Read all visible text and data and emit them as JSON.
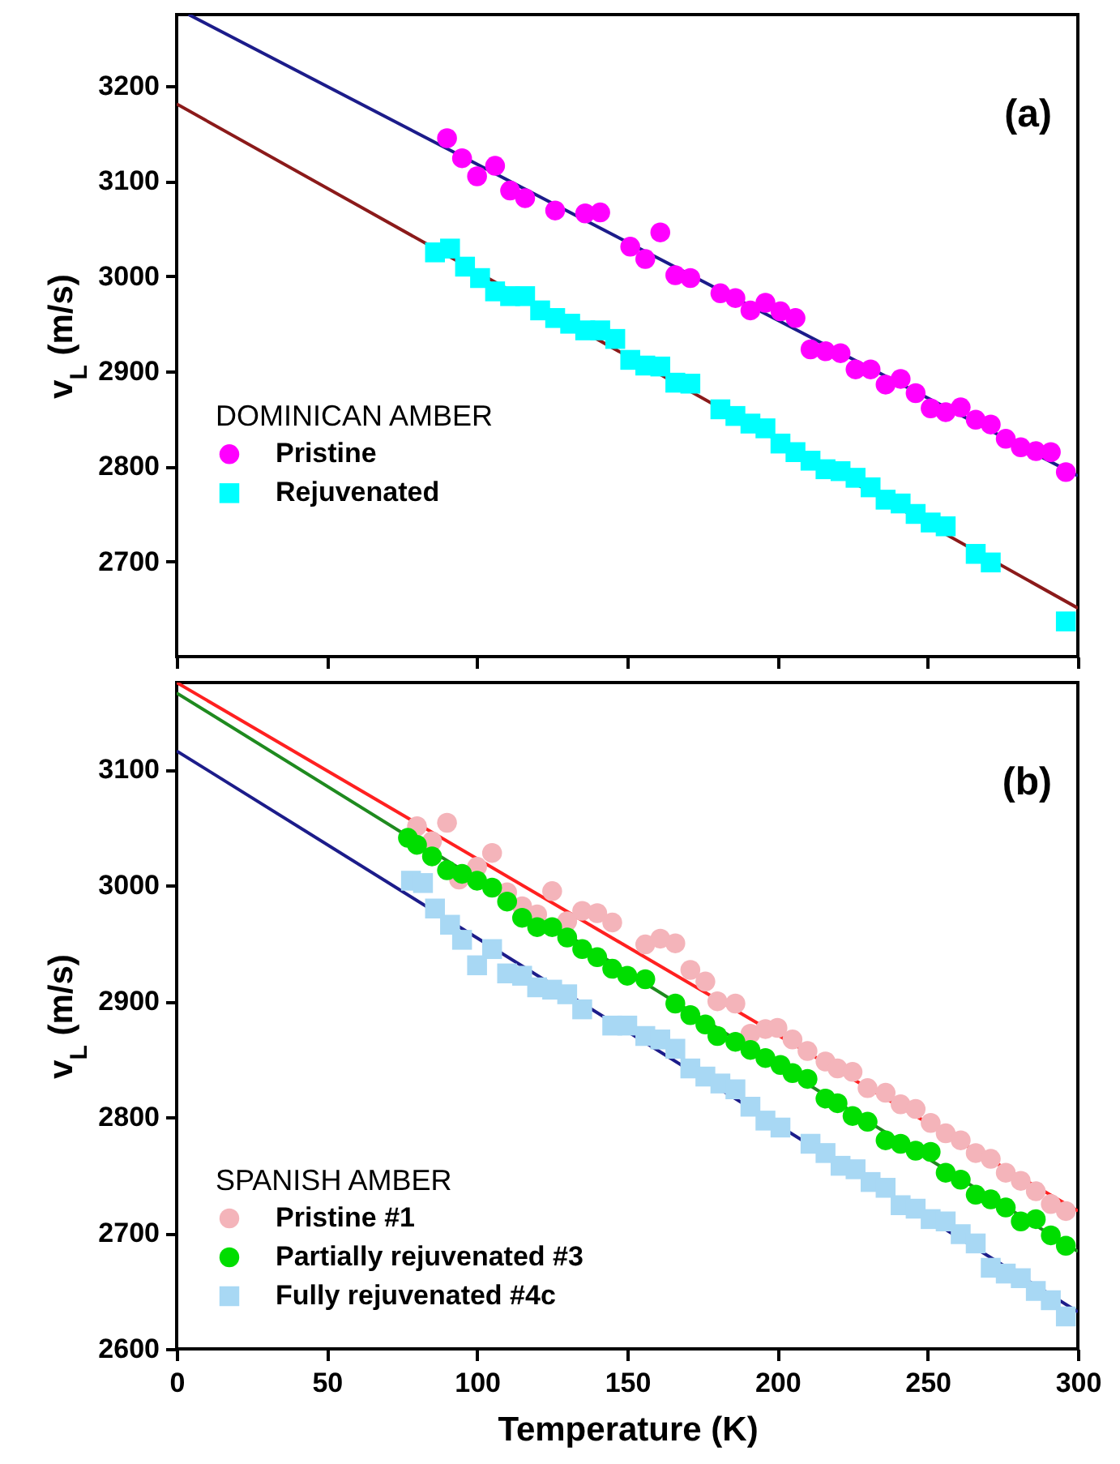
{
  "chart_data": [
    {
      "type": "scatter",
      "ylabel": "v$_{L}$ (m/s)",
      "xlim": [
        0,
        300
      ],
      "xticks": [
        0,
        50,
        100,
        150,
        200,
        250,
        300
      ],
      "ylim": [
        2600,
        3275
      ],
      "yticks": [
        2700,
        2800,
        2900,
        3000,
        3100,
        3200
      ],
      "tick_labels": "y",
      "grid": false,
      "legend": "bottom left",
      "legend_title": "DOMINICAN AMBER",
      "annotations": [
        "(a)"
      ],
      "series": [
        {
          "type": "line",
          "color": "#1c1c8a",
          "x": [
            4,
            300
          ],
          "values": [
            3275,
            2790
          ]
        },
        {
          "type": "line",
          "color": "#8b1a1a",
          "x": [
            0,
            300
          ],
          "values": [
            3181,
            2651
          ]
        },
        {
          "name": "Pristine",
          "color": "#ff00ff",
          "marker": "circle",
          "x": [
            90,
            95,
            100,
            106,
            111,
            116,
            126,
            136,
            141,
            151,
            156,
            161,
            166,
            171,
            181,
            186,
            191,
            196,
            201,
            206,
            211,
            216,
            221,
            226,
            231,
            236,
            241,
            246,
            251,
            256,
            261,
            266,
            271,
            276,
            281,
            286,
            291,
            296
          ],
          "values": [
            3145,
            3124,
            3105,
            3116,
            3090,
            3082,
            3069,
            3066,
            3067,
            3031,
            3018,
            3046,
            3001,
            2998,
            2982,
            2977,
            2964,
            2972,
            2963,
            2956,
            2923,
            2921,
            2919,
            2902,
            2902,
            2886,
            2892,
            2877,
            2861,
            2857,
            2862,
            2849,
            2844,
            2829,
            2820,
            2816,
            2815,
            2794
          ]
        },
        {
          "name": "Rejuvenated",
          "color": "#00ffff",
          "marker": "square",
          "x": [
            86,
            91,
            96,
            101,
            106,
            111,
            116,
            121,
            126,
            131,
            136,
            141,
            146,
            151,
            156,
            161,
            166,
            171,
            181,
            186,
            191,
            196,
            201,
            206,
            211,
            216,
            221,
            226,
            231,
            236,
            241,
            246,
            251,
            256,
            266,
            271,
            296
          ],
          "values": [
            3025,
            3029,
            3010,
            2998,
            2984,
            2979,
            2979,
            2964,
            2956,
            2950,
            2943,
            2943,
            2934,
            2912,
            2906,
            2905,
            2888,
            2887,
            2860,
            2853,
            2845,
            2840,
            2824,
            2815,
            2806,
            2797,
            2795,
            2788,
            2778,
            2765,
            2761,
            2750,
            2741,
            2737,
            2708,
            2699,
            2637
          ]
        }
      ]
    },
    {
      "type": "scatter",
      "xlabel": "Temperature (K)",
      "ylabel": "v$_{L}$ (m/s)",
      "xlim": [
        0,
        300
      ],
      "xticks": [
        0,
        50,
        100,
        150,
        200,
        250,
        300
      ],
      "ylim": [
        2600,
        3175
      ],
      "yticks": [
        2600,
        2700,
        2800,
        2900,
        3000,
        3100
      ],
      "grid": false,
      "legend": "bottom left",
      "legend_title": "SPANISH AMBER",
      "annotations": [
        "(b)"
      ],
      "series": [
        {
          "type": "line",
          "color": "#ff2020",
          "x": [
            0,
            300
          ],
          "values": [
            3175,
            2719
          ]
        },
        {
          "type": "line",
          "color": "#1f8a1f",
          "x": [
            0,
            300
          ],
          "values": [
            3166,
            2684
          ]
        },
        {
          "type": "line",
          "color": "#1c1c8a",
          "x": [
            0,
            300
          ],
          "values": [
            3116,
            2632
          ]
        },
        {
          "name": "Pristine #1",
          "color": "#f4b4ba",
          "marker": "circle",
          "x": [
            80,
            85,
            90,
            94,
            100,
            105,
            110,
            115,
            120,
            125,
            130,
            135,
            140,
            145,
            156,
            161,
            166,
            171,
            176,
            180,
            186,
            191,
            196,
            200,
            205,
            210,
            216,
            220,
            225,
            230,
            236,
            241,
            246,
            251,
            256,
            261,
            266,
            271,
            276,
            281,
            286,
            291,
            296
          ],
          "values": [
            3051,
            3038,
            3054,
            3005,
            3016,
            3028,
            2994,
            2982,
            2975,
            2995,
            2969,
            2978,
            2976,
            2968,
            2949,
            2954,
            2950,
            2927,
            2917,
            2900,
            2898,
            2872,
            2876,
            2877,
            2867,
            2857,
            2848,
            2842,
            2839,
            2825,
            2821,
            2811,
            2807,
            2795,
            2786,
            2780,
            2769,
            2764,
            2752,
            2745,
            2736,
            2725,
            2719
          ]
        },
        {
          "name": "Partially rejuvenated #3",
          "color": "#00dd00",
          "marker": "circle",
          "x": [
            77,
            80,
            85,
            90,
            95,
            100,
            105,
            110,
            115,
            120,
            125,
            130,
            135,
            140,
            145,
            150,
            156,
            166,
            171,
            176,
            180,
            186,
            191,
            196,
            201,
            205,
            210,
            216,
            220,
            225,
            230,
            236,
            241,
            246,
            251,
            256,
            261,
            266,
            271,
            276,
            281,
            286,
            291,
            296
          ],
          "values": [
            3041,
            3035,
            3025,
            3013,
            3010,
            3004,
            2998,
            2986,
            2972,
            2964,
            2964,
            2955,
            2945,
            2938,
            2928,
            2922,
            2919,
            2898,
            2888,
            2880,
            2870,
            2865,
            2858,
            2851,
            2845,
            2838,
            2833,
            2816,
            2812,
            2801,
            2796,
            2780,
            2777,
            2771,
            2770,
            2752,
            2746,
            2733,
            2729,
            2722,
            2710,
            2712,
            2698,
            2689
          ]
        },
        {
          "name": "Fully rejuvenated #4c",
          "color": "#a8d8f4",
          "marker": "square",
          "x": [
            78,
            82,
            86,
            91,
            95,
            100,
            105,
            110,
            115,
            120,
            125,
            130,
            135,
            145,
            150,
            156,
            161,
            166,
            171,
            176,
            181,
            186,
            191,
            196,
            201,
            211,
            216,
            221,
            226,
            231,
            236,
            241,
            246,
            251,
            256,
            261,
            266,
            271,
            276,
            281,
            286,
            291,
            296
          ],
          "values": [
            3004,
            3002,
            2980,
            2966,
            2953,
            2931,
            2945,
            2924,
            2922,
            2912,
            2910,
            2906,
            2893,
            2879,
            2879,
            2870,
            2867,
            2859,
            2842,
            2835,
            2829,
            2824,
            2809,
            2797,
            2791,
            2777,
            2769,
            2758,
            2755,
            2744,
            2739,
            2724,
            2721,
            2712,
            2710,
            2699,
            2691,
            2670,
            2665,
            2661,
            2650,
            2642,
            2628
          ]
        }
      ]
    }
  ]
}
